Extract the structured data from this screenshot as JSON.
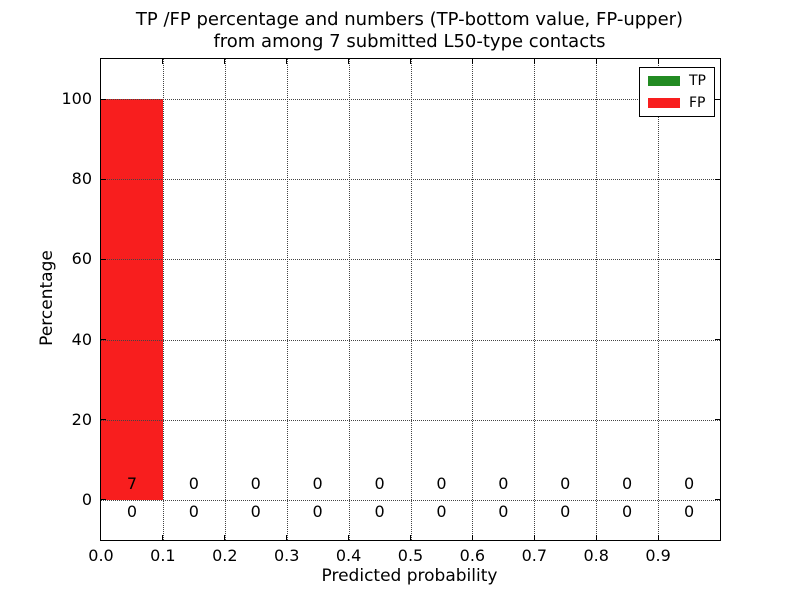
{
  "figure": {
    "background": "#ffffff"
  },
  "title": {
    "line1": "TP /FP percentage and numbers (TP-bottom value, FP-upper)",
    "line2": "from among 7 submitted L50-type contacts"
  },
  "axes_labels": {
    "xlabel": "Predicted probability",
    "ylabel": "Percentage"
  },
  "legend": {
    "position": "upper right",
    "items": [
      {
        "label": "TP",
        "color": "#228b22"
      },
      {
        "label": "FP",
        "color": "#f81e1e"
      }
    ]
  },
  "chart_data": {
    "type": "bar",
    "title": "TP /FP percentage and numbers (TP-bottom value, FP-upper) from among 7 submitted L50-type contacts",
    "xlabel": "Predicted probability",
    "ylabel": "Percentage",
    "xlim": [
      0.0,
      1.0
    ],
    "ylim": [
      -10,
      110
    ],
    "xtick_values": [
      0.0,
      0.1,
      0.2,
      0.3,
      0.4,
      0.5,
      0.6,
      0.7,
      0.8,
      0.9
    ],
    "xtick_labels": [
      "0.0",
      "0.1",
      "0.2",
      "0.3",
      "0.4",
      "0.5",
      "0.6",
      "0.7",
      "0.8",
      "0.9"
    ],
    "ytick_values": [
      0,
      20,
      40,
      60,
      80,
      100
    ],
    "ytick_labels": [
      "0",
      "20",
      "40",
      "60",
      "80",
      "100"
    ],
    "grid": true,
    "grid_style": "dotted",
    "legend_position": "upper right",
    "bin_edges": [
      0.0,
      0.1,
      0.2,
      0.3,
      0.4,
      0.5,
      0.6,
      0.7,
      0.8,
      0.9,
      1.0
    ],
    "stacked": true,
    "series": [
      {
        "name": "TP",
        "color": "#228b22",
        "percent": [
          0,
          0,
          0,
          0,
          0,
          0,
          0,
          0,
          0,
          0
        ],
        "counts": [
          0,
          0,
          0,
          0,
          0,
          0,
          0,
          0,
          0,
          0
        ],
        "count_label_row": "bottom"
      },
      {
        "name": "FP",
        "color": "#f81e1e",
        "percent": [
          100,
          0,
          0,
          0,
          0,
          0,
          0,
          0,
          0,
          0
        ],
        "counts": [
          7,
          0,
          0,
          0,
          0,
          0,
          0,
          0,
          0,
          0
        ],
        "count_label_row": "top"
      }
    ],
    "total_submitted_contacts": 7
  }
}
